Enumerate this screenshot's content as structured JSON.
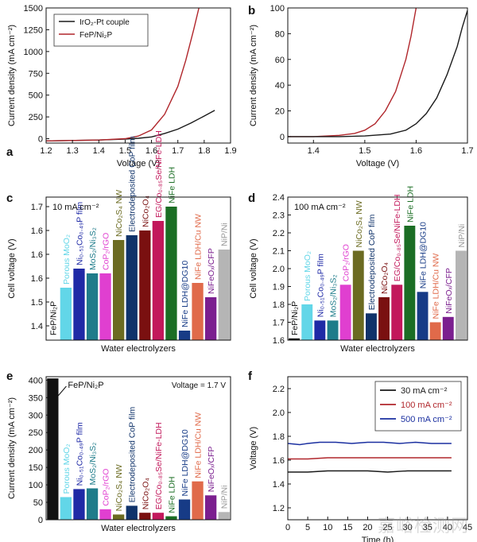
{
  "figure": {
    "watermark": "嘉峪检测网",
    "colors": {
      "black": "#1a1a1a",
      "red": "#b0262b",
      "blue": "#1a2fa0",
      "fep": "#111111",
      "pureMoO2": "#62d6e8",
      "nico_p": "#1f2aa6",
      "mos2": "#1e7c8a",
      "cop2": "#e03fd0",
      "nico2s4": "#6b6b21",
      "electrocop": "#10336a",
      "nico2o4": "#7a1010",
      "egco": "#c2185b",
      "nife": "#1b6e24",
      "nife_dg10": "#173b86",
      "nife_cu": "#e06a4a",
      "nifeox": "#7b1f8f",
      "nipni": "#b5b5b5"
    }
  },
  "chart_data": [
    {
      "panel": "a",
      "type": "line",
      "xlabel": "Voltage (V)",
      "ylabel": "Current density (mA cm⁻²)",
      "xlim": [
        1.2,
        1.9
      ],
      "ylim": [
        -50,
        1500
      ],
      "xticks": [
        1.2,
        1.3,
        1.4,
        1.5,
        1.6,
        1.7,
        1.8,
        1.9
      ],
      "yticks": [
        0,
        250,
        500,
        750,
        1000,
        1250,
        1500
      ],
      "legend": {
        "position": "top-left",
        "entries": [
          "IrO₂-Pt couple",
          "FeP/Ni₂P"
        ]
      },
      "series": [
        {
          "name": "IrO₂-Pt couple",
          "color": "black",
          "x": [
            1.2,
            1.4,
            1.5,
            1.55,
            1.6,
            1.65,
            1.7,
            1.75,
            1.8,
            1.84
          ],
          "y": [
            -25,
            -15,
            -5,
            5,
            20,
            60,
            110,
            180,
            260,
            325
          ]
        },
        {
          "name": "FeP/Ni₂P",
          "color": "red",
          "x": [
            1.2,
            1.4,
            1.5,
            1.55,
            1.6,
            1.65,
            1.7,
            1.73,
            1.76,
            1.78
          ],
          "y": [
            -25,
            -15,
            0,
            30,
            100,
            280,
            600,
            900,
            1250,
            1500
          ]
        }
      ]
    },
    {
      "panel": "b",
      "type": "line",
      "xlabel": "Voltage (V)",
      "ylabel": "Current density (mA cm⁻²)",
      "xlim": [
        1.35,
        1.7
      ],
      "ylim": [
        -5,
        100
      ],
      "xticks": [
        1.4,
        1.5,
        1.6,
        1.7
      ],
      "yticks": [
        0,
        20,
        40,
        60,
        80,
        100
      ],
      "series": [
        {
          "name": "FeP/Ni₂P",
          "color": "red",
          "x": [
            1.35,
            1.4,
            1.45,
            1.48,
            1.5,
            1.52,
            1.54,
            1.56,
            1.58,
            1.59,
            1.6
          ],
          "y": [
            0,
            0,
            1,
            2.5,
            5,
            10,
            20,
            35,
            60,
            78,
            100
          ]
        },
        {
          "name": "IrO₂-Pt couple",
          "color": "black",
          "x": [
            1.35,
            1.45,
            1.5,
            1.55,
            1.58,
            1.6,
            1.62,
            1.64,
            1.66,
            1.68,
            1.69,
            1.7
          ],
          "y": [
            0,
            0,
            0.5,
            2,
            5,
            10,
            18,
            30,
            48,
            70,
            85,
            98
          ]
        }
      ]
    },
    {
      "panel": "c",
      "type": "bar",
      "condition": "10 mA cm⁻²",
      "xlabel": "Water electrolyzers",
      "ylabel": "Cell voltage (V)",
      "ylim": [
        1.42,
        1.72
      ],
      "yticks": [
        1.45,
        1.5,
        1.55,
        1.6,
        1.65,
        1.7
      ],
      "bars": [
        {
          "label": "FeP/Ni₂P",
          "value": 1.42,
          "color": "fep"
        },
        {
          "label": "Porous MoO₂",
          "value": 1.53,
          "color": "pureMoO2"
        },
        {
          "label": "Ni₀.₅₁Co₀.₄₉P film",
          "value": 1.57,
          "color": "nico_p"
        },
        {
          "label": "MoS₂/Ni₃S₂",
          "value": 1.56,
          "color": "mos2"
        },
        {
          "label": "CoP₂/rGO",
          "value": 1.56,
          "color": "cop2"
        },
        {
          "label": "NiCo₂S₄ NW",
          "value": 1.63,
          "color": "nico2s4"
        },
        {
          "label": "Electrodeposited CoP film",
          "value": 1.64,
          "color": "electrocop"
        },
        {
          "label": "NiCo₂O₄",
          "value": 1.65,
          "color": "nico2o4"
        },
        {
          "label": "EG/Co₀.₈₅Se/NiFe-LDH",
          "value": 1.67,
          "color": "egco"
        },
        {
          "label": "NiFe LDH",
          "value": 1.7,
          "color": "nife"
        },
        {
          "label": "NiFe LDH@DG10",
          "value": 1.44,
          "color": "nife_dg10"
        },
        {
          "label": "NiFe LDH/Cu NW",
          "value": 1.54,
          "color": "nife_cu"
        },
        {
          "label": "NiFeOₓ/CFP",
          "value": 1.51,
          "color": "nifeox"
        },
        {
          "label": "NiP/Ni",
          "value": 1.61,
          "color": "nipni"
        }
      ]
    },
    {
      "panel": "d",
      "type": "bar",
      "condition": "100 mA cm⁻²",
      "xlabel": "Water electrolyzers",
      "ylabel": "Cell voltage (V)",
      "ylim": [
        1.6,
        2.4
      ],
      "yticks": [
        1.6,
        1.7,
        1.8,
        1.9,
        2.0,
        2.1,
        2.2,
        2.3,
        2.4
      ],
      "bars": [
        {
          "label": "FeP/Ni₂P",
          "value": 1.61,
          "color": "fep"
        },
        {
          "label": "Porous MoO₂",
          "value": 1.8,
          "color": "pureMoO2"
        },
        {
          "label": "Ni₀.₅₁Co₀.₄₉P film",
          "value": 1.71,
          "color": "nico_p"
        },
        {
          "label": "MoS₂/Ni₃S₂",
          "value": 1.71,
          "color": "mos2"
        },
        {
          "label": "CoP₂/rGO",
          "value": 1.91,
          "color": "cop2"
        },
        {
          "label": "NiCo₂S₄ NW",
          "value": 2.1,
          "color": "nico2s4"
        },
        {
          "label": "Electrodeposited CoP film",
          "value": 1.75,
          "color": "electrocop"
        },
        {
          "label": "NiCo₂O₄",
          "value": 1.84,
          "color": "nico2o4"
        },
        {
          "label": "EG/Co₀.₈₅Se/NiFe-LDH",
          "value": 1.91,
          "color": "egco"
        },
        {
          "label": "NiFe LDH",
          "value": 2.24,
          "color": "nife"
        },
        {
          "label": "NiFe LDH@DG10",
          "value": 1.87,
          "color": "nife_dg10"
        },
        {
          "label": "NiFe LDH/Cu NW",
          "value": 1.7,
          "color": "nife_cu"
        },
        {
          "label": "NiFeOₓ/CFP",
          "value": 1.73,
          "color": "nifeox"
        },
        {
          "label": "NiP/Ni",
          "value": 2.1,
          "color": "nipni"
        }
      ]
    },
    {
      "panel": "e",
      "type": "bar",
      "condition": "Voltage = 1.7 V",
      "xlabel": "Water electrolyzers",
      "ylabel": "Current density (mA cm⁻²)",
      "ylim": [
        0,
        410
      ],
      "yticks": [
        0,
        50,
        100,
        150,
        200,
        250,
        300,
        350,
        400
      ],
      "bars": [
        {
          "label": "FeP/Ni₂P",
          "value": 405,
          "color": "fep"
        },
        {
          "label": "Porous MoO₂",
          "value": 65,
          "color": "pureMoO2"
        },
        {
          "label": "Ni₀.₅₁Co₀.₄₉P film",
          "value": 88,
          "color": "nico_p"
        },
        {
          "label": "MoS₂/Ni₃S₂",
          "value": 90,
          "color": "mos2"
        },
        {
          "label": "CoP₂/rGO",
          "value": 30,
          "color": "cop2"
        },
        {
          "label": "NiCo₂S₄ NW",
          "value": 15,
          "color": "nico2s4"
        },
        {
          "label": "Electrodeposited CoP film",
          "value": 40,
          "color": "electrocop"
        },
        {
          "label": "NiCo₂O₄",
          "value": 20,
          "color": "nico2o4"
        },
        {
          "label": "EG/Co₀.₈₅Se/NiFe-LDH",
          "value": 20,
          "color": "egco"
        },
        {
          "label": "NiFe LDH",
          "value": 10,
          "color": "nife"
        },
        {
          "label": "NiFe LDH@DG10",
          "value": 58,
          "color": "nife_dg10"
        },
        {
          "label": "NiFe LDH/Cu NW",
          "value": 110,
          "color": "nife_cu"
        },
        {
          "label": "NiFeOₓ/CFP",
          "value": 70,
          "color": "nifeox"
        },
        {
          "label": "NiP/Ni",
          "value": 22,
          "color": "nipni"
        }
      ]
    },
    {
      "panel": "f",
      "type": "line",
      "xlabel": "Time (h)",
      "ylabel": "Voltage (V)",
      "xlim": [
        0,
        45
      ],
      "ylim": [
        1.1,
        2.3
      ],
      "xticks": [
        0,
        5,
        10,
        15,
        20,
        25,
        30,
        35,
        40,
        45
      ],
      "yticks": [
        1.2,
        1.4,
        1.6,
        1.8,
        2.0,
        2.2
      ],
      "legend": {
        "position": "top-right",
        "entries": [
          "30 mA cm⁻²",
          "100 mA cm⁻²",
          "500 mA cm⁻²"
        ]
      },
      "series": [
        {
          "name": "30 mA cm⁻²",
          "color": "black",
          "x": [
            0,
            5,
            10,
            15,
            20,
            25,
            30,
            35,
            40,
            41
          ],
          "y": [
            1.5,
            1.5,
            1.51,
            1.51,
            1.51,
            1.5,
            1.51,
            1.51,
            1.51,
            1.51
          ]
        },
        {
          "name": "100 mA cm⁻²",
          "color": "red",
          "x": [
            0,
            5,
            10,
            15,
            20,
            25,
            30,
            35,
            40,
            41
          ],
          "y": [
            1.61,
            1.61,
            1.62,
            1.62,
            1.62,
            1.62,
            1.62,
            1.62,
            1.62,
            1.62
          ]
        },
        {
          "name": "500 mA cm⁻²",
          "color": "blue",
          "x": [
            0,
            3,
            5,
            8,
            12,
            16,
            20,
            24,
            28,
            32,
            36,
            40,
            41
          ],
          "y": [
            1.74,
            1.73,
            1.74,
            1.75,
            1.75,
            1.74,
            1.75,
            1.75,
            1.74,
            1.75,
            1.74,
            1.74,
            1.74
          ]
        }
      ]
    }
  ]
}
